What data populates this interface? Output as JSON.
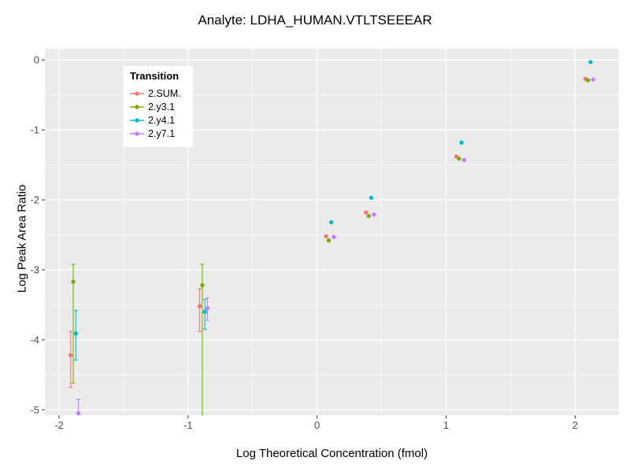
{
  "chart_data": {
    "type": "scatter",
    "title": "Analyte: LDHA_HUMAN.VTLTSEEEAR",
    "xlabel": "Log Theoretical Concentration (fmol)",
    "ylabel": "Log Peak Area Ratio",
    "xlim": [
      -2.11,
      2.34
    ],
    "ylim": [
      -5.08,
      0.16
    ],
    "x_ticks": [
      -2,
      -1,
      0,
      1,
      2
    ],
    "y_ticks": [
      0,
      -1,
      -2,
      -3,
      -4,
      -5
    ],
    "x_minor_ticks": [
      -1.5,
      -0.5,
      0.5,
      1.5
    ],
    "y_minor_ticks": [
      -0.5,
      -1.5,
      -2.5,
      -3.5,
      -4.5
    ],
    "grid": true,
    "panel_background": "#EBEBEB",
    "grid_major_color": "#FFFFFF",
    "grid_minor_color": "#FFFFFF",
    "tick_label_color": "#4D4D4D",
    "legend": {
      "title": "Transition",
      "position": "inside-top-left",
      "background": "#FFFFFF"
    },
    "series": [
      {
        "name": "2.SUM.",
        "color": "#F8766D",
        "points": [
          {
            "x": -1.91,
            "y": -4.22,
            "err": [
              -4.68,
              -3.88
            ]
          },
          {
            "x": -0.91,
            "y": -3.52,
            "err": [
              -3.88,
              -3.27
            ]
          },
          {
            "x": 0.07,
            "y": -2.52
          },
          {
            "x": 0.38,
            "y": -2.18
          },
          {
            "x": 1.08,
            "y": -1.38
          },
          {
            "x": 2.08,
            "y": -0.27
          }
        ]
      },
      {
        "name": "2.y3.1",
        "color": "#7CAE00",
        "points": [
          {
            "x": -1.89,
            "y": -3.17,
            "err": [
              -4.62,
              -2.92
            ]
          },
          {
            "x": -0.89,
            "y": -3.22,
            "err": [
              -5.35,
              -2.92
            ]
          },
          {
            "x": 0.09,
            "y": -2.58
          },
          {
            "x": 0.4,
            "y": -2.23
          },
          {
            "x": 1.1,
            "y": -1.41
          },
          {
            "x": 2.1,
            "y": -0.29
          }
        ]
      },
      {
        "name": "2.y4.1",
        "color": "#00BFC4",
        "points": [
          {
            "x": -1.87,
            "y": -3.91,
            "err": [
              -4.29,
              -3.58
            ]
          },
          {
            "x": -0.87,
            "y": -3.6,
            "err": [
              -3.85,
              -3.42
            ]
          },
          {
            "x": 0.11,
            "y": -2.32
          },
          {
            "x": 0.42,
            "y": -1.97
          },
          {
            "x": 1.12,
            "y": -1.18
          },
          {
            "x": 2.12,
            "y": -0.03
          }
        ]
      },
      {
        "name": "2.y7.1",
        "color": "#C77CFF",
        "points": [
          {
            "x": -1.85,
            "y": -5.05,
            "err": [
              -5.45,
              -4.85
            ]
          },
          {
            "x": -0.85,
            "y": -3.55,
            "err": [
              -3.72,
              -3.4
            ]
          },
          {
            "x": 0.13,
            "y": -2.53
          },
          {
            "x": 0.44,
            "y": -2.21
          },
          {
            "x": 1.14,
            "y": -1.43
          },
          {
            "x": 2.14,
            "y": -0.28
          }
        ]
      }
    ]
  }
}
